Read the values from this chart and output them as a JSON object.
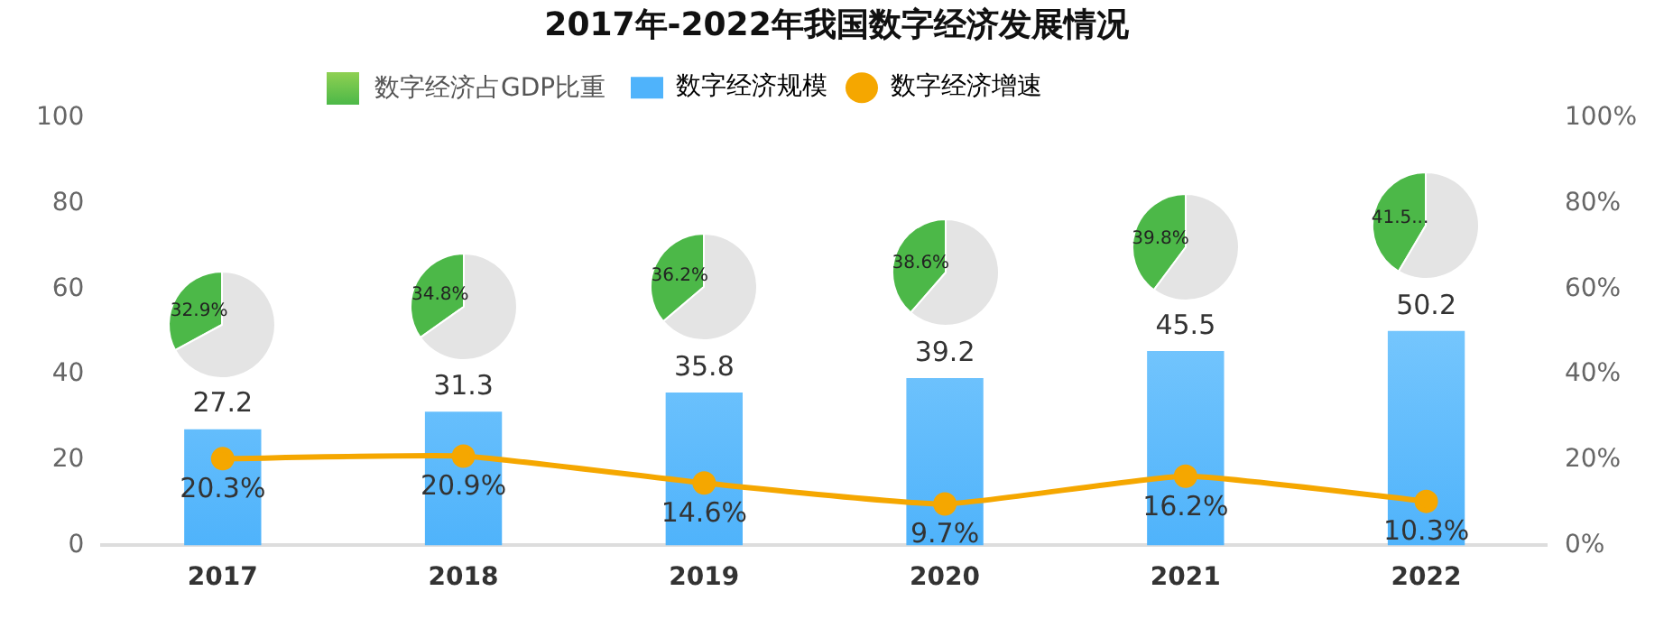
{
  "chart_data": [
    {
      "type": "bar",
      "title": "2017年-2022年我国数字经济发展情况",
      "categories": [
        "2017",
        "2018",
        "2019",
        "2020",
        "2021",
        "2022"
      ],
      "series": [
        {
          "name": "数字经济规模",
          "type": "bar",
          "color": "#4fb3fb",
          "values": [
            27.2,
            31.3,
            35.8,
            39.2,
            45.5,
            50.2
          ],
          "value_labels": [
            "27.2",
            "31.3",
            "35.8",
            "39.2",
            "45.5",
            "50.2"
          ]
        },
        {
          "name": "数字经济增速",
          "type": "line",
          "axis": "y2",
          "color": "#f5a700",
          "values": [
            20.3,
            20.9,
            14.6,
            9.7,
            16.2,
            10.3
          ],
          "value_labels": [
            "20.3%",
            "20.9%",
            "14.6%",
            "9.7%",
            "16.2%",
            "10.3%"
          ]
        }
      ],
      "ylim": [
        0,
        100
      ],
      "yticks": [
        0,
        20,
        40,
        60,
        80,
        100
      ],
      "y2lim": [
        0,
        100
      ],
      "y2ticks": [
        {
          "value": 0,
          "label": "0%"
        },
        {
          "value": 20,
          "label": "20%"
        },
        {
          "value": 40,
          "label": "40%"
        },
        {
          "value": 60,
          "label": "60%"
        },
        {
          "value": 80,
          "label": "80%"
        },
        {
          "value": 100,
          "label": "100%"
        }
      ],
      "grid": false,
      "legend": "top",
      "marker": "circle"
    },
    {
      "type": "pie",
      "categories": [
        "数字经济占GDP比重",
        null
      ],
      "values": [
        32.9,
        67.1
      ],
      "colors": [
        "#4cb848",
        "#e4e4e4"
      ],
      "value_labels": [
        "32.9%",
        null
      ],
      "legend": "top"
    },
    {
      "type": "pie",
      "categories": [
        null,
        null
      ],
      "values": [
        34.8,
        65.2
      ],
      "colors": [
        "#4cb848",
        "#e4e4e4"
      ],
      "value_labels": [
        "34.8%",
        null
      ]
    },
    {
      "type": "pie",
      "categories": [
        null,
        null
      ],
      "values": [
        36.2,
        63.8
      ],
      "colors": [
        "#4cb848",
        "#e4e4e4"
      ],
      "value_labels": [
        "36.2%",
        null
      ]
    },
    {
      "type": "pie",
      "categories": [
        null,
        null
      ],
      "values": [
        38.6,
        61.4
      ],
      "colors": [
        "#4cb848",
        "#e4e4e4"
      ],
      "value_labels": [
        "38.6%",
        null
      ]
    },
    {
      "type": "pie",
      "categories": [
        null,
        null
      ],
      "values": [
        39.8,
        60.2
      ],
      "colors": [
        "#4cb848",
        "#e4e4e4"
      ],
      "value_labels": [
        "39.8%",
        null
      ]
    },
    {
      "type": "pie",
      "categories": [
        null,
        null
      ],
      "values": [
        41.5,
        58.5
      ],
      "colors": [
        "#4cb848",
        "#e4e4e4"
      ],
      "value_labels": [
        "41.5...",
        null
      ]
    }
  ]
}
